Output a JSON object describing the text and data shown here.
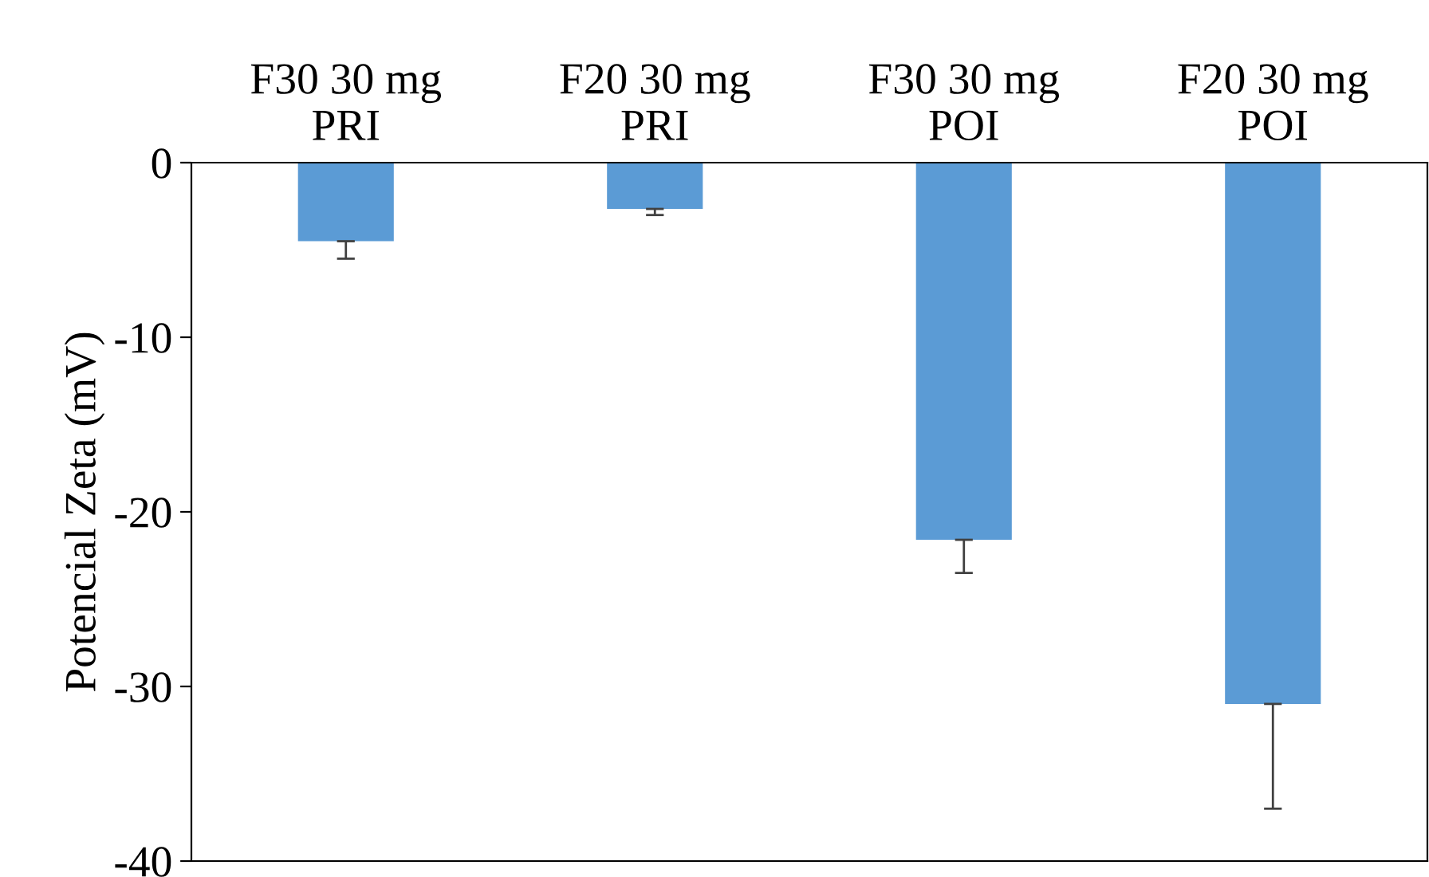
{
  "chart_data": {
    "type": "bar",
    "ylabel": "Potencial Zeta (mV)",
    "categories": [
      "F30 30 mg\nPRI",
      "F20 30 mg\nPRI",
      "F30 30 mg\nPOI",
      "F20 30 mg\nPOI"
    ],
    "values": [
      -4.5,
      -2.65,
      -21.6,
      -31.0
    ],
    "errors": [
      [
        -5.5,
        -4.5
      ],
      [
        -3.0,
        -2.65
      ],
      [
        -23.5,
        -21.6
      ],
      [
        -37.0,
        -31.0
      ]
    ],
    "color": "#5b9bd5",
    "ylim": [
      -40,
      0
    ],
    "yticks": [
      0,
      -10,
      -20,
      -30,
      -40
    ],
    "grid": false,
    "legend": false
  }
}
